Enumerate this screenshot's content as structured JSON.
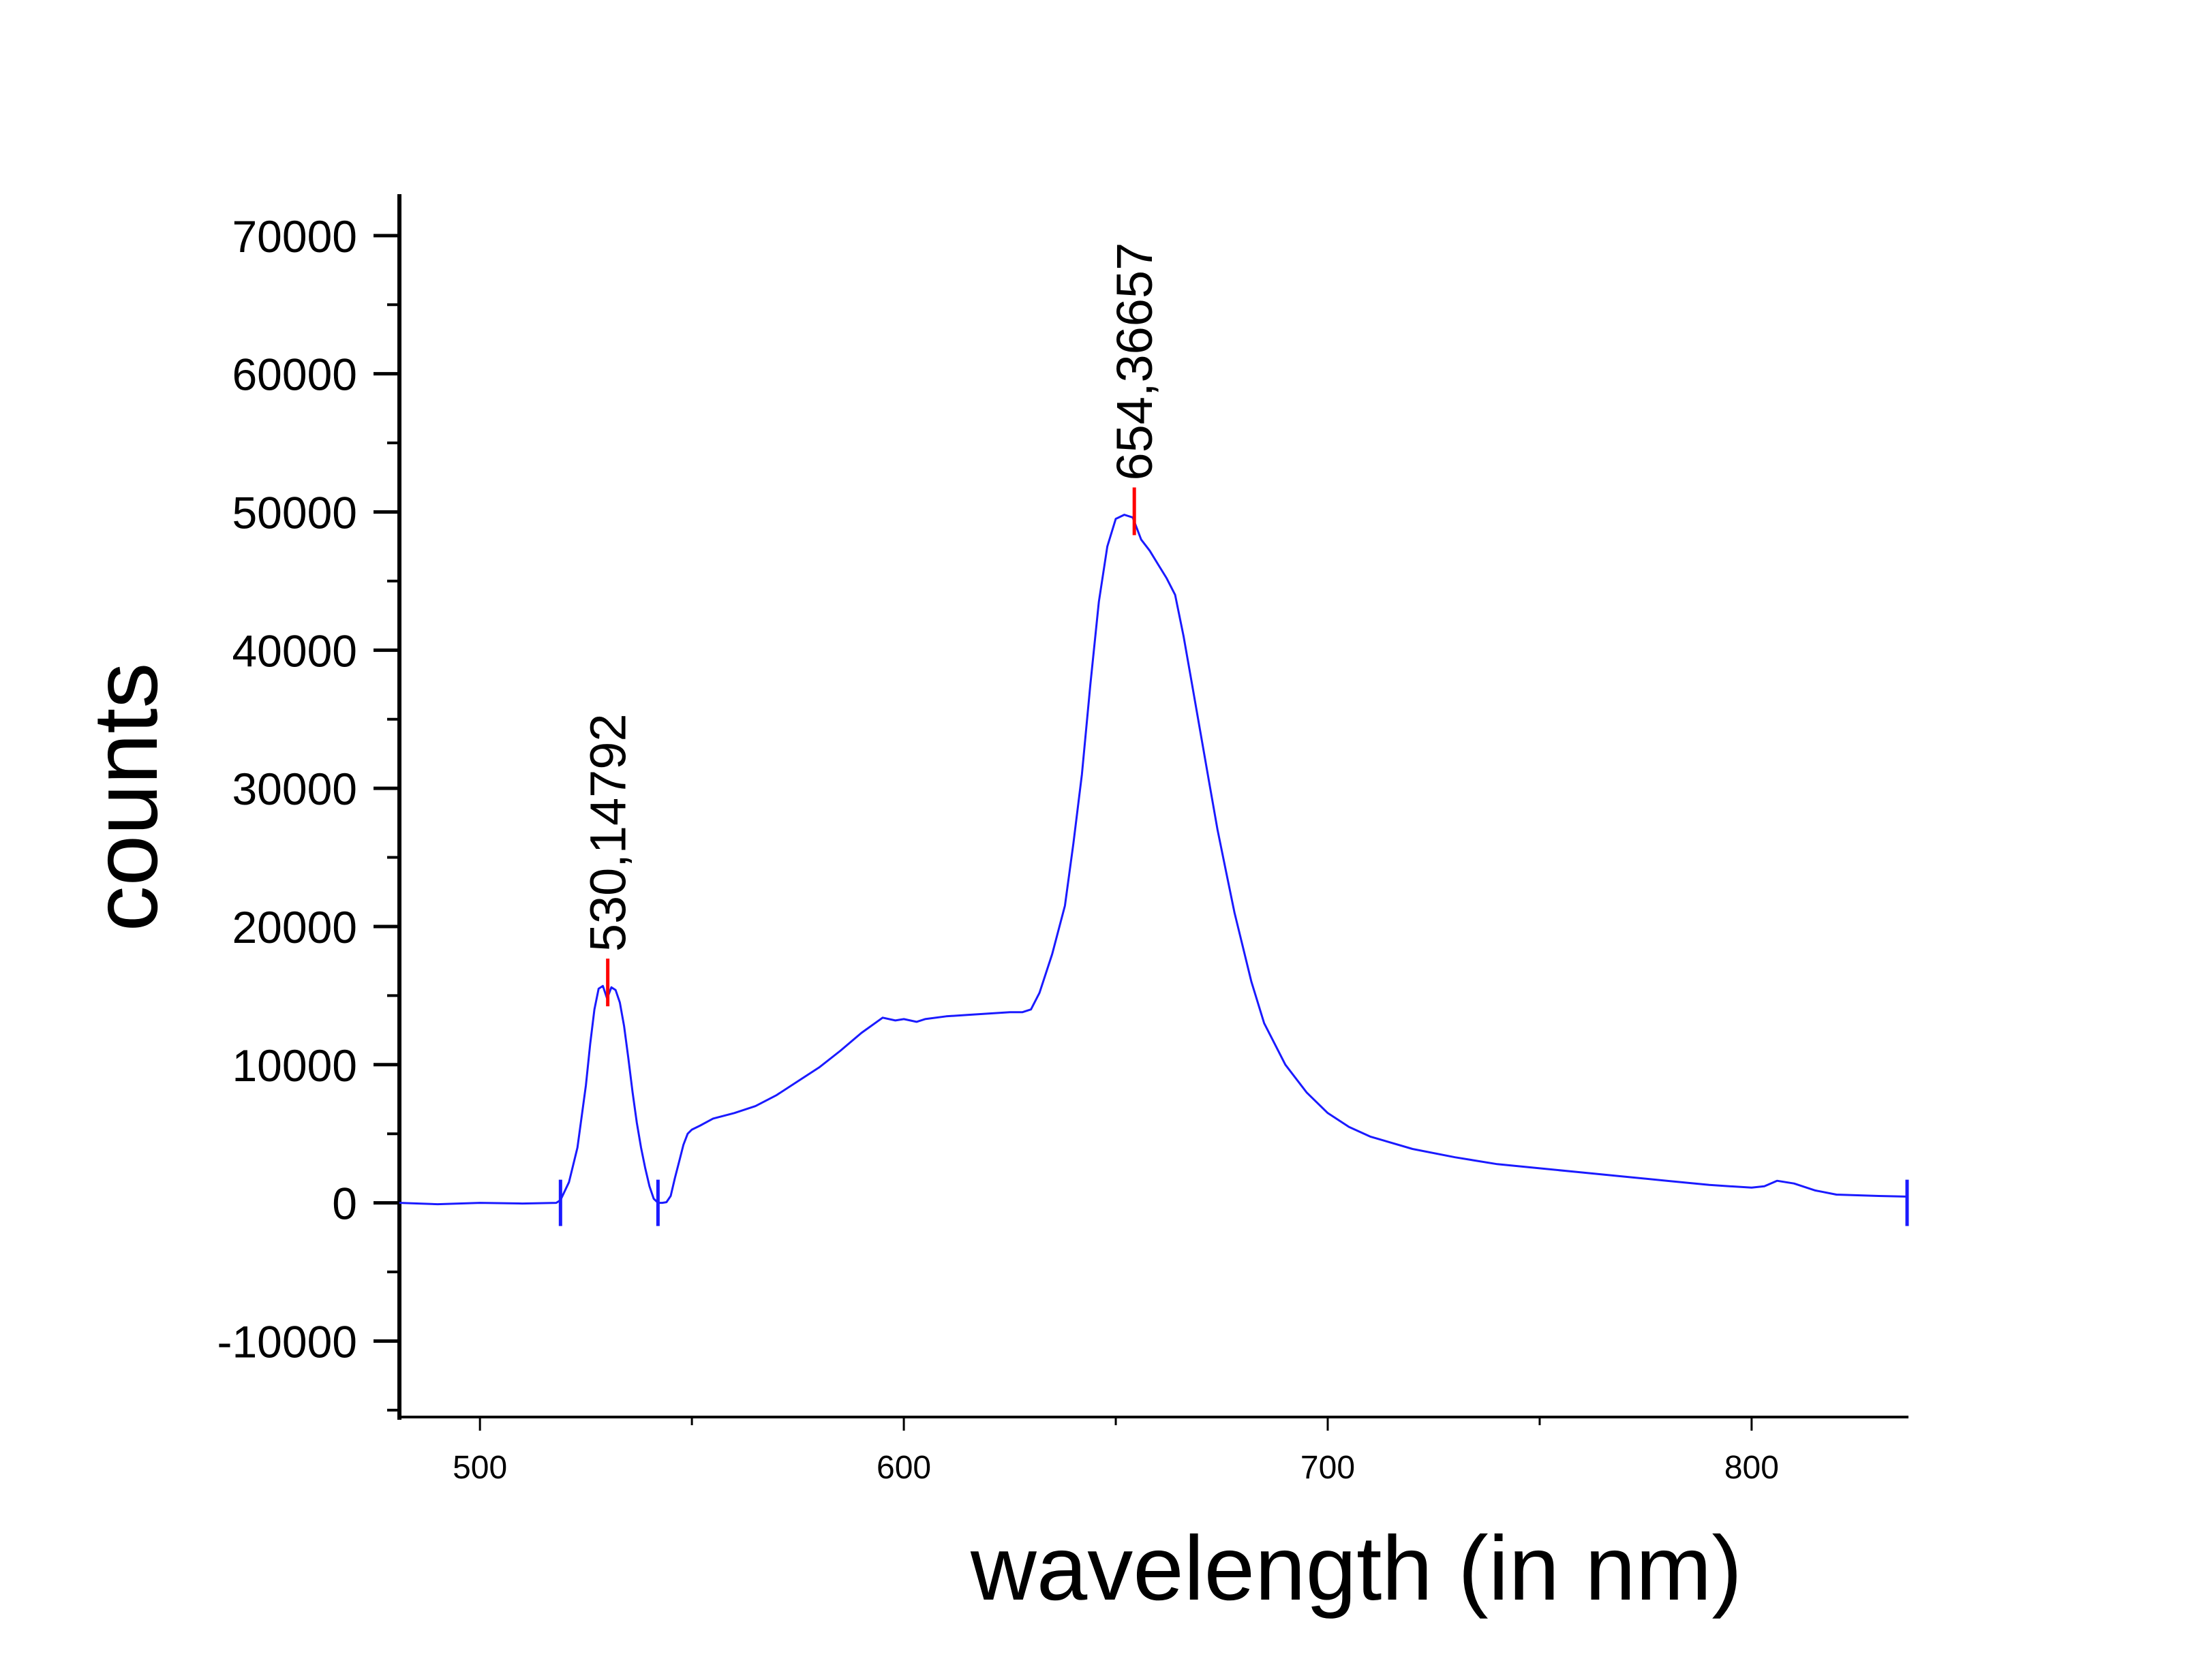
{
  "chart_data": {
    "type": "line",
    "title": "",
    "xlabel": "wavelength (in nm)",
    "ylabel": "counts",
    "xlim": [
      481,
      837
    ],
    "ylim": [
      -15500,
      73000
    ],
    "x_ticks": [
      500,
      600,
      700,
      800
    ],
    "x_tick_labels": [
      "500",
      "600",
      "700",
      "800"
    ],
    "y_ticks": [
      -10000,
      0,
      10000,
      20000,
      30000,
      40000,
      50000,
      60000,
      70000
    ],
    "y_tick_labels": [
      "-10000",
      "0",
      "10000",
      "20000",
      "30000",
      "40000",
      "50000",
      "60000",
      "70000"
    ],
    "grid": false,
    "legend": null,
    "colors": {
      "series": "#1a1aff",
      "peak_marker": "#ff0000",
      "boundary_marker": "#1a1aff",
      "axis": "#000000"
    },
    "series": [
      {
        "x": [
          481,
          490,
          500,
          510,
          518,
          519,
          521,
          523,
          525,
          526,
          527,
          528,
          529,
          530,
          531,
          532,
          533,
          534,
          535,
          536,
          537,
          538,
          539,
          540,
          541,
          542,
          543,
          544,
          545,
          546,
          547,
          548,
          549,
          550,
          552,
          555,
          560,
          565,
          570,
          575,
          580,
          585,
          590,
          595,
          598,
          600,
          603,
          605,
          610,
          615,
          620,
          625,
          628,
          630,
          632,
          635,
          638,
          640,
          642,
          644,
          646,
          648,
          650,
          652,
          654,
          656,
          658,
          660,
          662,
          664,
          666,
          668,
          670,
          672,
          674,
          676,
          678,
          680,
          682,
          685,
          690,
          695,
          700,
          705,
          710,
          720,
          730,
          740,
          750,
          760,
          770,
          780,
          790,
          800,
          803,
          806,
          810,
          815,
          820,
          830,
          837
        ],
        "y": [
          0,
          -100,
          0,
          -50,
          0,
          200,
          1500,
          4000,
          8500,
          11500,
          14000,
          15500,
          15700,
          14792,
          15600,
          15400,
          14500,
          12800,
          10500,
          8000,
          5800,
          4000,
          2500,
          1200,
          300,
          0,
          0,
          50,
          500,
          1800,
          3000,
          4200,
          5000,
          5300,
          5600,
          6100,
          6500,
          7000,
          7800,
          8800,
          9800,
          11000,
          12300,
          13400,
          13200,
          13300,
          13100,
          13300,
          13500,
          13600,
          13700,
          13800,
          13800,
          14000,
          15200,
          18000,
          21500,
          26000,
          31000,
          37500,
          43500,
          47500,
          49500,
          49800,
          49600,
          48000,
          47200,
          46200,
          45200,
          44000,
          41000,
          37500,
          34000,
          30500,
          27000,
          24000,
          21000,
          18500,
          16000,
          13000,
          10000,
          8000,
          6500,
          5500,
          4800,
          3900,
          3300,
          2800,
          2500,
          2200,
          1900,
          1600,
          1300,
          1100,
          1200,
          1600,
          1400,
          900,
          600,
          500,
          450
        ]
      }
    ],
    "peak_annotations": [
      {
        "x": 530.14792,
        "y": 15700,
        "label": "530,14792"
      },
      {
        "x": 654.36657,
        "y": 49800,
        "label": "654,36657"
      }
    ],
    "boundary_markers": [
      519,
      542,
      837
    ]
  }
}
